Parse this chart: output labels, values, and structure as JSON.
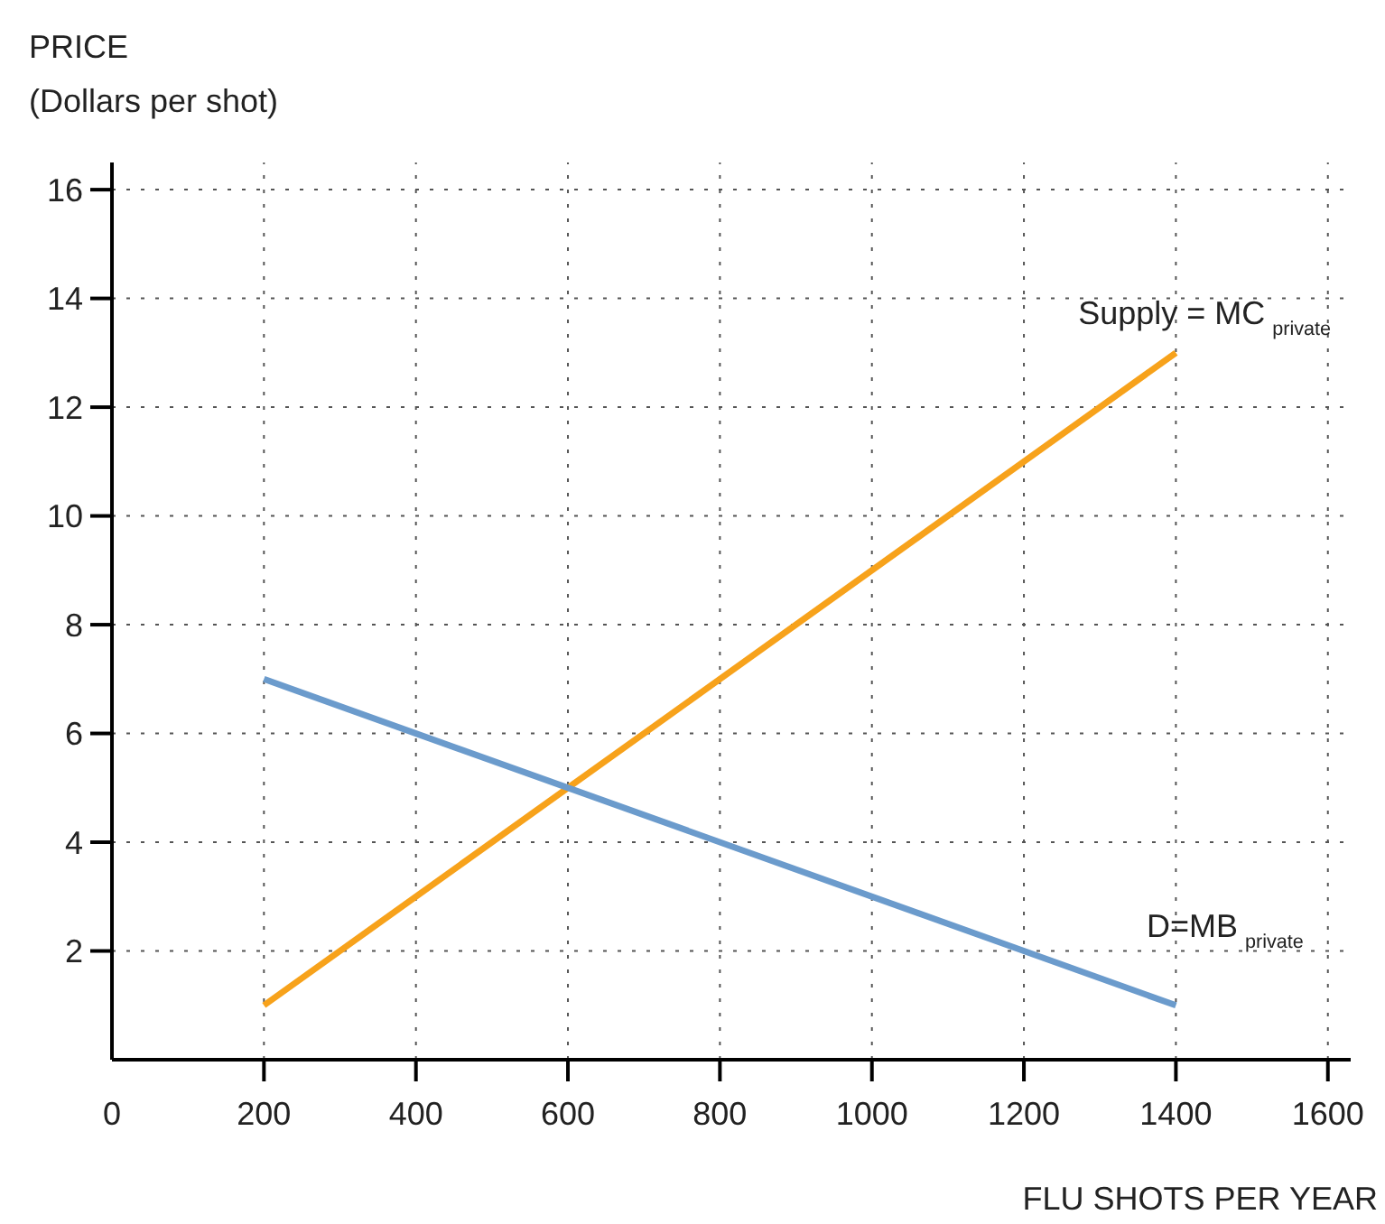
{
  "chart_data": {
    "type": "line",
    "ylabel": "PRICE\n(Dollars per shot)",
    "xlabel": "FLU SHOTS PER YEAR",
    "xlim": [
      0,
      1630
    ],
    "xticks": [
      0,
      200,
      400,
      600,
      800,
      1000,
      1200,
      1400,
      1600
    ],
    "x": [
      200,
      1400
    ],
    "ylim": [
      0,
      16.5
    ],
    "yticks": [
      2,
      4,
      6,
      8,
      10,
      12,
      14,
      16
    ],
    "grid": true,
    "line_style": "solid",
    "series": [
      {
        "name": "Supply = MC$_{private}$",
        "color": "#f7a21b",
        "values": [
          1,
          13
        ]
      },
      {
        "name": "D=MB$_{private}$",
        "color": "#6b9bcc",
        "values": [
          7,
          1
        ]
      }
    ]
  }
}
